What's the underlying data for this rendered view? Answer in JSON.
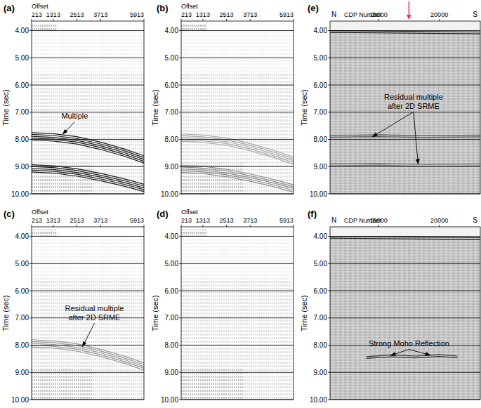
{
  "chart_data": [
    {
      "type": "seismic",
      "title": "(a)",
      "x_label": "Offset",
      "y_label": "Time (sec)",
      "xlim": [
        213,
        5913
      ],
      "xticks": [
        213,
        1313,
        2513,
        3713,
        5913
      ],
      "ylim": [
        3.65,
        10
      ],
      "yticks": [
        {
          "value": 4,
          "label": "4.00"
        },
        {
          "value": 5,
          "label": "5.00"
        },
        {
          "value": 6,
          "label": "6.00"
        },
        {
          "value": 7,
          "label": "7.00"
        },
        {
          "value": 8,
          "label": "8.00"
        },
        {
          "value": 9,
          "label": "9.00"
        },
        {
          "value": 10,
          "label": "10.00"
        }
      ],
      "grid": true,
      "series": [
        {
          "x": [
            213,
            1313,
            2513,
            3713,
            4913,
            5913
          ],
          "values": [
            7.75,
            7.79,
            7.9,
            8.1,
            8.35,
            8.6
          ],
          "color": "#1a1a1a"
        },
        {
          "x": [
            213,
            1313,
            2513,
            3713,
            4913,
            5913
          ],
          "values": [
            8.93,
            8.97,
            9.08,
            9.25,
            9.45,
            9.65
          ],
          "color": "#1a1a1a"
        }
      ],
      "annotations": [
        {
          "lines": [
            "Multiple"
          ],
          "x": 2400,
          "y": 7.25,
          "arrows": [
            [
              1800,
              7.8
            ]
          ]
        }
      ]
    },
    {
      "type": "seismic",
      "title": "(b)",
      "x_label": "Offset",
      "y_label": "Time (sec)",
      "xlim": [
        213,
        5913
      ],
      "xticks": [
        213,
        1313,
        2513,
        3713,
        5913
      ],
      "ylim": [
        3.65,
        10
      ],
      "yticks": [
        {
          "value": 4,
          "label": "4.00"
        },
        {
          "value": 5,
          "label": "5.00"
        },
        {
          "value": 6,
          "label": "6.00"
        },
        {
          "value": 7,
          "label": "7.00"
        },
        {
          "value": 8,
          "label": "8.00"
        },
        {
          "value": 9,
          "label": "9.00"
        },
        {
          "value": 10,
          "label": "10.00"
        }
      ],
      "grid": true,
      "series": [
        {
          "x": [
            213,
            1313,
            2513,
            3713,
            4913,
            5913
          ],
          "values": [
            7.8,
            7.84,
            7.95,
            8.15,
            8.4,
            8.65
          ],
          "color": "#a8a8a8"
        },
        {
          "x": [
            213,
            1313,
            2513,
            3713,
            4913,
            5913
          ],
          "values": [
            8.95,
            8.99,
            9.1,
            9.27,
            9.47,
            9.67
          ],
          "color": "#8c8c8c"
        }
      ],
      "annotations": []
    },
    {
      "type": "seismic",
      "title": "(c)",
      "x_label": "Offset",
      "y_label": "Time (sec)",
      "xlim": [
        213,
        5913
      ],
      "xticks": [
        213,
        1313,
        2513,
        3713,
        5913
      ],
      "ylim": [
        3.65,
        10
      ],
      "yticks": [
        {
          "value": 4,
          "label": "4.00"
        },
        {
          "value": 5,
          "label": "5.00"
        },
        {
          "value": 6,
          "label": "6.00"
        },
        {
          "value": 7,
          "label": "7.00"
        },
        {
          "value": 8,
          "label": "8.00"
        },
        {
          "value": 9,
          "label": "9.00"
        },
        {
          "value": 10,
          "label": "10.00"
        }
      ],
      "grid": true,
      "series": [
        {
          "x": [
            213,
            1313,
            2513,
            3713,
            4913,
            5913
          ],
          "values": [
            7.8,
            7.84,
            7.95,
            8.15,
            8.4,
            8.65
          ],
          "color": "#9a9a9a"
        }
      ],
      "annotations": [
        {
          "lines": [
            "Residual multiple",
            "after 2D SRME"
          ],
          "x": 3400,
          "y": 6.75,
          "arrows": [
            [
              2800,
              8.05
            ]
          ]
        }
      ]
    },
    {
      "type": "seismic",
      "title": "(d)",
      "x_label": "Offset",
      "y_label": "Time (sec)",
      "xlim": [
        213,
        5913
      ],
      "xticks": [
        213,
        1313,
        2513,
        3713,
        5913
      ],
      "ylim": [
        3.65,
        10
      ],
      "yticks": [
        {
          "value": 4,
          "label": "4.00"
        },
        {
          "value": 5,
          "label": "5.00"
        },
        {
          "value": 6,
          "label": "6.00"
        },
        {
          "value": 7,
          "label": "7.00"
        },
        {
          "value": 8,
          "label": "8.00"
        },
        {
          "value": 9,
          "label": "9.00"
        },
        {
          "value": 10,
          "label": "10.00"
        }
      ],
      "grid": true,
      "series": [],
      "annotations": []
    },
    {
      "type": "seismic_section",
      "title": "(e)",
      "x_label": "CDP Number",
      "left_label": "N",
      "right_label": "S",
      "y_label": "Time (sec)",
      "xlim": [
        16400,
        21350
      ],
      "xticks": [
        18000,
        20000
      ],
      "ylim": [
        3.65,
        10
      ],
      "yticks": [
        {
          "value": 4,
          "label": "4.00"
        },
        {
          "value": 5,
          "label": "5.00"
        },
        {
          "value": 6,
          "label": "6.00"
        },
        {
          "value": 7,
          "label": "7.00"
        },
        {
          "value": 8,
          "label": "8.00"
        },
        {
          "value": 9,
          "label": "9.00"
        },
        {
          "value": 10,
          "label": "10.00"
        }
      ],
      "grid": true,
      "highlight": {
        "x": 19000,
        "color": "#e8336d"
      },
      "series": [
        {
          "x": [
            16400,
            21350
          ],
          "values": [
            4.0,
            4.05
          ],
          "color": "#111111"
        },
        {
          "x": [
            16400,
            18000,
            19500,
            21350
          ],
          "values": [
            7.85,
            7.83,
            7.86,
            7.84
          ],
          "color": "#5a5a5a"
        },
        {
          "x": [
            16400,
            18000,
            19500,
            21350
          ],
          "values": [
            8.9,
            8.88,
            8.92,
            8.9
          ],
          "color": "#6e6e6e"
        }
      ],
      "annotations": [
        {
          "lines": [
            "Residual multiple",
            "after 2D SRME"
          ],
          "x": 19150,
          "y": 6.55,
          "arrows": [
            [
              17800,
              7.9
            ],
            [
              19300,
              8.9
            ]
          ]
        }
      ]
    },
    {
      "type": "seismic_section",
      "title": "(f)",
      "x_label": "CDP Number",
      "left_label": "N",
      "right_label": "S",
      "y_label": "Time (sec)",
      "xlim": [
        16400,
        21350
      ],
      "xticks": [
        18000,
        20000
      ],
      "ylim": [
        3.65,
        10
      ],
      "yticks": [
        {
          "value": 4,
          "label": "4.00"
        },
        {
          "value": 5,
          "label": "5.00"
        },
        {
          "value": 6,
          "label": "6.00"
        },
        {
          "value": 7,
          "label": "7.00"
        },
        {
          "value": 8,
          "label": "8.00"
        },
        {
          "value": 9,
          "label": "9.00"
        },
        {
          "value": 10,
          "label": "10.00"
        }
      ],
      "grid": true,
      "series": [
        {
          "x": [
            16400,
            21350
          ],
          "values": [
            4.0,
            4.05
          ],
          "color": "#111111"
        },
        {
          "x": [
            17600,
            18400,
            19200,
            20000,
            20600
          ],
          "values": [
            8.42,
            8.36,
            8.4,
            8.35,
            8.4
          ],
          "color": "#333333"
        }
      ],
      "annotations": [
        {
          "lines": [
            "Strong Moho Reflection"
          ],
          "x": 19000,
          "y": 8.05,
          "arrows": [
            [
              18400,
              8.38
            ],
            [
              19700,
              8.37
            ]
          ]
        }
      ]
    }
  ]
}
